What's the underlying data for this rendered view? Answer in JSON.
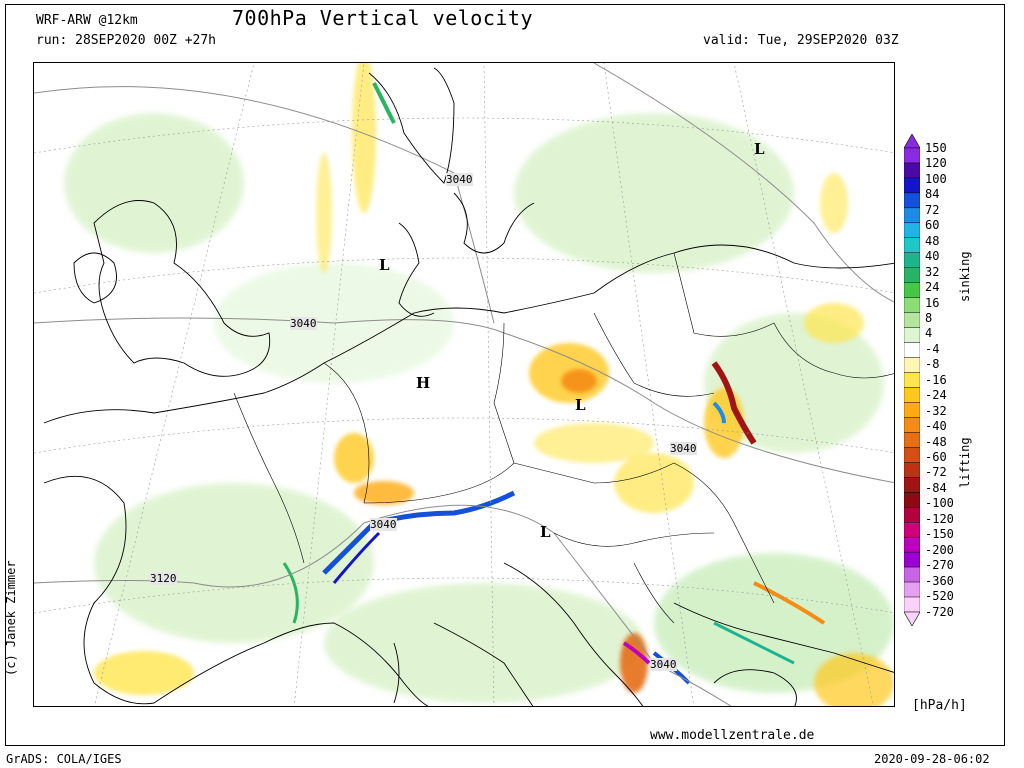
{
  "header": {
    "model": "WRF-ARW @12km",
    "title": "700hPa Vertical velocity",
    "run": "run: 28SEP2020 00Z +27h",
    "valid": "valid: Tue, 29SEP2020 03Z"
  },
  "footer": {
    "website": "www.modellzentrale.de",
    "software": "GrADS: COLA/IGES",
    "timestamp": "2020-09-28-06:02",
    "author": "(c) Janek Zimmer"
  },
  "colorbar": {
    "units": "[hPa/h]",
    "upper_label": "sinking",
    "lower_label": "lifting",
    "levels": [
      "150",
      "120",
      "100",
      "84",
      "72",
      "60",
      "48",
      "40",
      "32",
      "24",
      "16",
      "8",
      "4",
      "-4",
      "-8",
      "-16",
      "-24",
      "-32",
      "-40",
      "-48",
      "-60",
      "-72",
      "-84",
      "-100",
      "-120",
      "-150",
      "-200",
      "-270",
      "-360",
      "-520",
      "-720"
    ],
    "colors": [
      "#8a2be2",
      "#4b0aa8",
      "#1414c8",
      "#1450dc",
      "#1e8ce6",
      "#1eb4e6",
      "#1ec8c8",
      "#1eb48c",
      "#28b464",
      "#46c846",
      "#8cdc78",
      "#b4e6a0",
      "#dcf5d2",
      "#ffffff",
      "#fff5b4",
      "#ffe650",
      "#ffc81e",
      "#ffaa14",
      "#f58c14",
      "#e66e14",
      "#d25014",
      "#be3214",
      "#a01414",
      "#8c0a14",
      "#b4003c",
      "#d20078",
      "#be00be",
      "#9b00d2",
      "#c864e6",
      "#e6a0f0",
      "#fad2fa"
    ]
  },
  "map": {
    "features": "Geopotential height contours (hPa/700hPa) over Europe with pressure centers",
    "pressure_centers": [
      {
        "label": "L"
      },
      {
        "label": "L"
      },
      {
        "label": "H"
      },
      {
        "label": "L"
      },
      {
        "label": "L"
      }
    ],
    "height_labels": [
      "3040",
      "3040",
      "3040",
      "3040",
      "3120",
      "3040"
    ]
  }
}
